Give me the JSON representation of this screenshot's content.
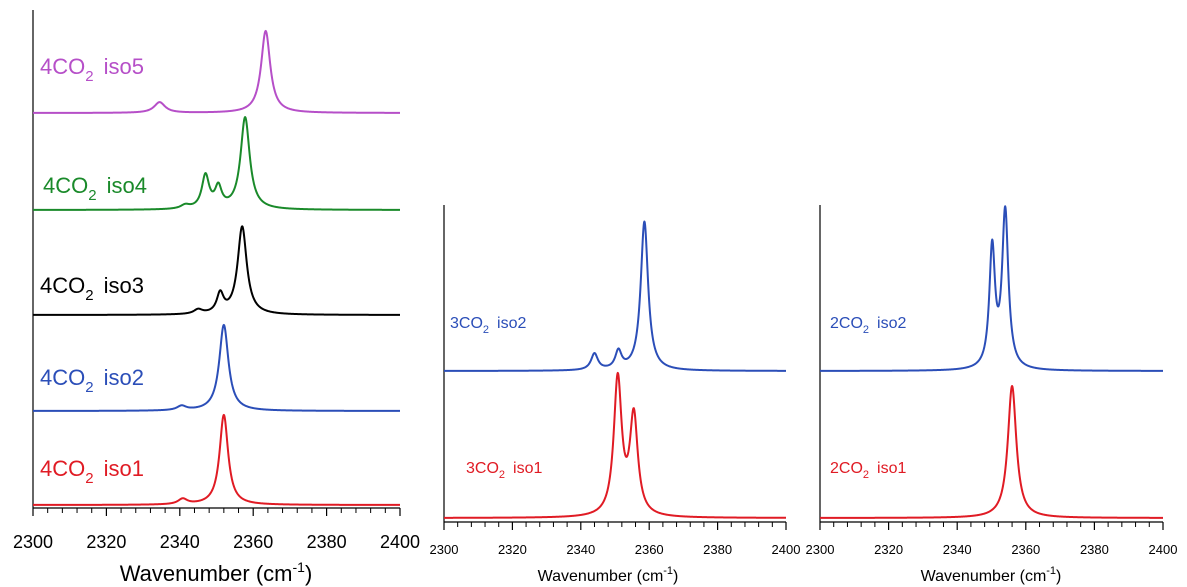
{
  "chart_data": [
    {
      "type": "line",
      "panel": "left",
      "xlabel_main": "Wavenumber (cm",
      "xlabel_sup": "-1",
      "xlabel_end": ")",
      "xlim": [
        2300,
        2400
      ],
      "x_ticks": [
        2300,
        2320,
        2340,
        2360,
        2380,
        2400
      ],
      "x_tick_labels": [
        "2300",
        "2320",
        "2340",
        "2360",
        "2380",
        "2400"
      ],
      "x_minor_step": 4,
      "grid": false,
      "series": [
        {
          "label_pre": "4CO",
          "label_sub": "2",
          "label_post": "iso5",
          "color": "#b64fc8",
          "peaks": [
            {
              "center": 2334.5,
              "height": 0.13,
              "width": 1.8
            },
            {
              "center": 2363.4,
              "height": 1.0,
              "width": 1.5
            }
          ]
        },
        {
          "label_pre": "4CO",
          "label_sub": "2",
          "label_post": "iso4",
          "color": "#1a8a2a",
          "peaks": [
            {
              "center": 2341.5,
              "height": 0.04,
              "width": 1.5
            },
            {
              "center": 2347.0,
              "height": 0.36,
              "width": 1.2
            },
            {
              "center": 2350.5,
              "height": 0.22,
              "width": 1.1
            },
            {
              "center": 2357.8,
              "height": 1.0,
              "width": 1.5
            }
          ]
        },
        {
          "label_pre": "4CO",
          "label_sub": "2",
          "label_post": "iso3",
          "color": "#000000",
          "peaks": [
            {
              "center": 2345.0,
              "height": 0.05,
              "width": 1.4
            },
            {
              "center": 2351.0,
              "height": 0.22,
              "width": 1.1
            },
            {
              "center": 2357.0,
              "height": 1.0,
              "width": 1.5
            }
          ]
        },
        {
          "label_pre": "4CO",
          "label_sub": "2",
          "label_post": "iso2",
          "color": "#2b4eb8",
          "peaks": [
            {
              "center": 2340.5,
              "height": 0.05,
              "width": 1.5
            },
            {
              "center": 2352.0,
              "height": 1.0,
              "width": 1.5
            }
          ]
        },
        {
          "label_pre": "4CO",
          "label_sub": "2",
          "label_post": "iso1",
          "color": "#e01b24",
          "peaks": [
            {
              "center": 2340.8,
              "height": 0.06,
              "width": 1.5
            },
            {
              "center": 2352.0,
              "height": 1.0,
              "width": 1.4
            }
          ]
        }
      ]
    },
    {
      "type": "line",
      "panel": "middle",
      "xlabel_main": "Wavenumber (cm",
      "xlabel_sup": "-1",
      "xlabel_end": ")",
      "xlim": [
        2300,
        2400
      ],
      "x_ticks": [
        2300,
        2320,
        2340,
        2360,
        2380,
        2400
      ],
      "x_tick_labels": [
        "2300",
        "2320",
        "2340",
        "2360",
        "2380",
        "2400"
      ],
      "x_minor_step": 4,
      "grid": false,
      "series": [
        {
          "label_pre": "3CO",
          "label_sub": "2",
          "label_post": "iso2",
          "color": "#2b4eb8",
          "peaks": [
            {
              "center": 2344.0,
              "height": 0.11,
              "width": 1.2
            },
            {
              "center": 2351.0,
              "height": 0.12,
              "width": 1.1
            },
            {
              "center": 2358.6,
              "height": 1.0,
              "width": 1.3
            }
          ]
        },
        {
          "label_pre": "3CO",
          "label_sub": "2",
          "label_post": "iso1",
          "color": "#e01b24",
          "peaks": [
            {
              "center": 2350.8,
              "height": 1.0,
              "width": 1.4
            },
            {
              "center": 2355.5,
              "height": 0.72,
              "width": 1.4
            }
          ]
        }
      ]
    },
    {
      "type": "line",
      "panel": "right",
      "xlabel_main": "Wavenumber (cm",
      "xlabel_sup": "-1",
      "xlabel_end": ")",
      "xlim": [
        2300,
        2400
      ],
      "x_ticks": [
        2300,
        2320,
        2340,
        2360,
        2380,
        2400
      ],
      "x_tick_labels": [
        "2300",
        "2320",
        "2340",
        "2360",
        "2380",
        "2400"
      ],
      "x_minor_step": 4,
      "grid": false,
      "series": [
        {
          "label_pre": "2CO",
          "label_sub": "2",
          "label_post": "iso2",
          "color": "#2b4eb8",
          "peaks": [
            {
              "center": 2350.2,
              "height": 0.76,
              "width": 1.0
            },
            {
              "center": 2354.0,
              "height": 1.0,
              "width": 1.1
            }
          ]
        },
        {
          "label_pre": "2CO",
          "label_sub": "2",
          "label_post": "iso1",
          "color": "#e01b24",
          "peaks": [
            {
              "center": 2356.0,
              "height": 1.0,
              "width": 1.5
            }
          ]
        }
      ]
    }
  ]
}
